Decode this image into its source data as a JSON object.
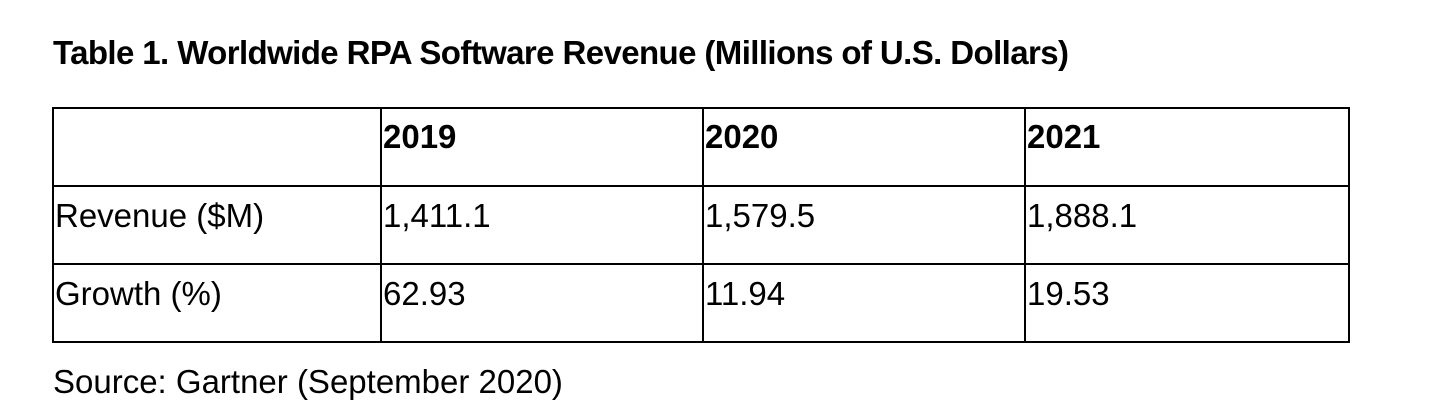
{
  "title": "Table 1. Worldwide RPA Software Revenue (Millions of U.S. Dollars)",
  "table": {
    "corner": "",
    "columns": [
      "2019",
      "2020",
      "2021"
    ],
    "rows": [
      {
        "label": "Revenue ($M)",
        "values": [
          "1,411.1",
          "1,579.5",
          "1,888.1"
        ]
      },
      {
        "label": "Growth (%)",
        "values": [
          "62.93",
          "11.94",
          "19.53"
        ]
      }
    ]
  },
  "source": "Source: Gartner (September 2020)",
  "chart_data": {
    "type": "table",
    "title": "Table 1. Worldwide RPA Software Revenue (Millions of U.S. Dollars)",
    "columns": [
      "2019",
      "2020",
      "2021"
    ],
    "series": [
      {
        "name": "Revenue ($M)",
        "values": [
          1411.1,
          1579.5,
          1888.1
        ]
      },
      {
        "name": "Growth (%)",
        "values": [
          62.93,
          11.94,
          19.53
        ]
      }
    ]
  }
}
